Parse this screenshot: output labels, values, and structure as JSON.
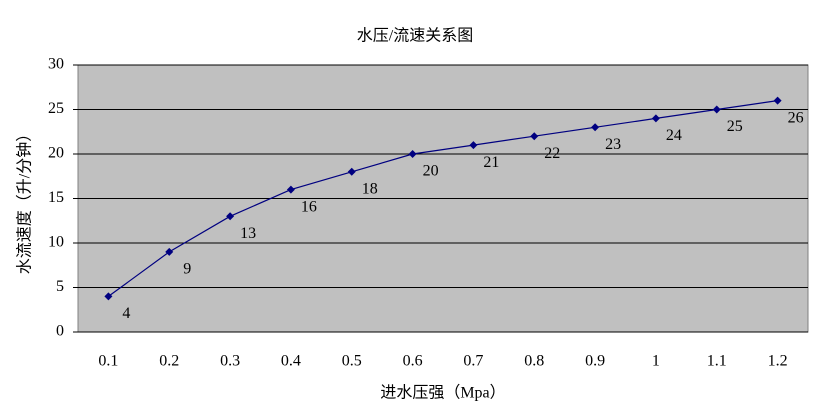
{
  "chart_data": {
    "type": "line",
    "title": "水压/流速关系图",
    "x_label": "进水压强（Mpa）",
    "y_label": "水流速度（升/分钟）",
    "categories": [
      "0.1",
      "0.2",
      "0.3",
      "0.4",
      "0.5",
      "0.6",
      "0.7",
      "0.8",
      "0.9",
      "1",
      "1.1",
      "1.2"
    ],
    "values": [
      4,
      9,
      13,
      16,
      18,
      20,
      21,
      22,
      23,
      24,
      25,
      26
    ],
    "color": "#000080",
    "plot_background": "#c0c0c0",
    "ylim": [
      0,
      30
    ],
    "yticks": [
      0,
      5,
      10,
      15,
      20,
      25,
      30
    ],
    "grid": true
  }
}
